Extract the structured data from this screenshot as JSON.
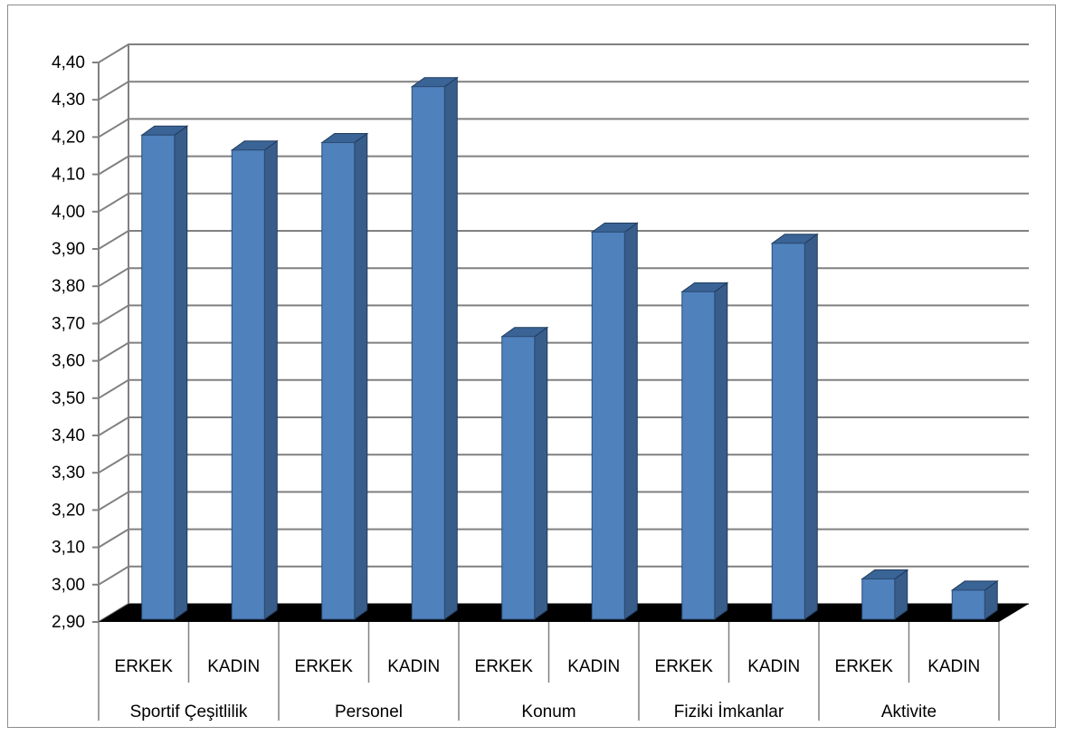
{
  "chart_data": {
    "type": "bar",
    "style": "3d-column",
    "groups": [
      "Sportif Çeşitlilik",
      "Personel",
      "Konum",
      "Fiziki İmkanlar",
      "Aktivite"
    ],
    "subcategories": [
      "ERKEK",
      "KADIN"
    ],
    "categories": [
      "Sportif Çeşitlilik ERKEK",
      "Sportif Çeşitlilik KADIN",
      "Personel ERKEK",
      "Personel KADIN",
      "Konum ERKEK",
      "Konum KADIN",
      "Fiziki İmkanlar ERKEK",
      "Fiziki İmkanlar KADIN",
      "Aktivite ERKEK",
      "Aktivite KADIN"
    ],
    "values": [
      4.21,
      4.17,
      4.19,
      4.34,
      3.67,
      3.95,
      3.79,
      3.92,
      3.02,
      2.99
    ],
    "ylim": [
      2.9,
      4.4
    ],
    "yticks": [
      "2,90",
      "3,00",
      "3,10",
      "3,20",
      "3,30",
      "3,40",
      "3,50",
      "3,60",
      "3,70",
      "3,80",
      "3,90",
      "4,00",
      "4,10",
      "4,20",
      "4,30",
      "4,40"
    ],
    "grid": true,
    "legend": "none",
    "title": "",
    "xlabel": "",
    "ylabel": "",
    "colors": {
      "bar_front": "#4f81bd",
      "bar_side": "#385d8a",
      "bar_top": "#3a6496",
      "floor": "#000000",
      "grid": "#808080"
    }
  }
}
